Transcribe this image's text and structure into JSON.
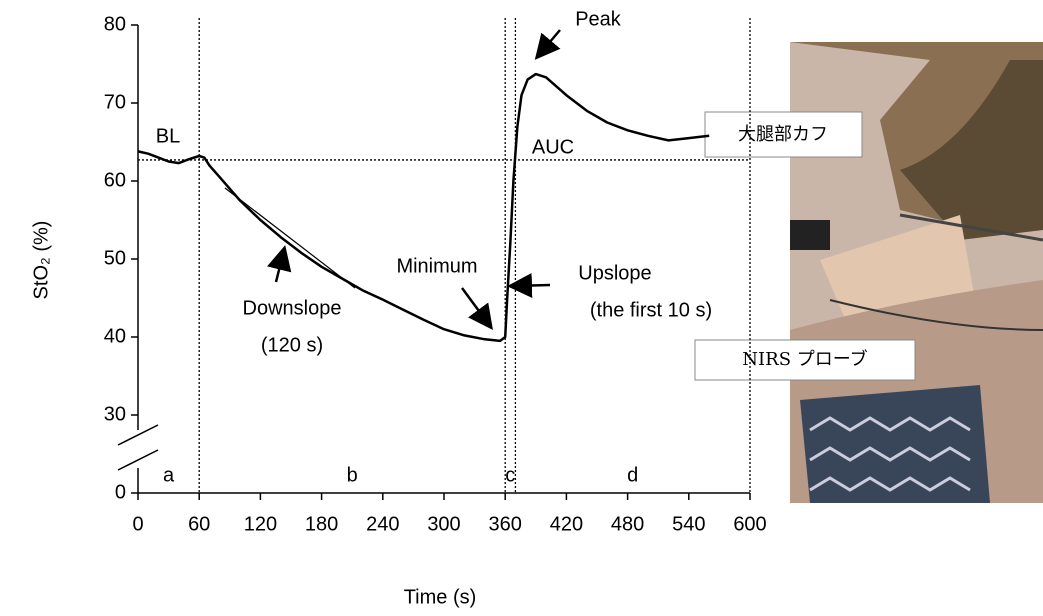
{
  "chart_data": {
    "type": "line",
    "x_label": "Time (s)",
    "y_label": "StO₂ (%)",
    "x": [
      0,
      10,
      20,
      30,
      40,
      50,
      60,
      65,
      70,
      80,
      90,
      100,
      120,
      140,
      160,
      180,
      200,
      220,
      240,
      260,
      280,
      300,
      320,
      340,
      355,
      360,
      362,
      365,
      368,
      372,
      376,
      382,
      390,
      400,
      420,
      440,
      460,
      480,
      500,
      520,
      540,
      560
    ],
    "values": [
      63.8,
      63.5,
      63,
      62.5,
      62.3,
      62.8,
      63.2,
      63,
      62,
      60.5,
      59,
      57.5,
      55,
      52.8,
      50.8,
      49,
      47.5,
      46,
      44.8,
      43.5,
      42.2,
      41,
      40.2,
      39.7,
      39.5,
      40,
      45,
      52,
      60,
      67,
      71,
      73,
      73.7,
      73.3,
      71,
      69,
      67.5,
      66.5,
      65.8,
      65.2,
      65.5,
      65.8
    ],
    "color": "#000000",
    "xlim": [
      0,
      600
    ],
    "xticks": [
      0,
      60,
      120,
      180,
      240,
      300,
      360,
      420,
      480,
      540,
      600
    ],
    "ylim": [
      0,
      80
    ],
    "yticks": [
      0,
      30,
      40,
      50,
      60,
      70,
      80
    ],
    "axis_break": [
      0,
      30
    ],
    "baseline": 62.7,
    "phase_boundaries": [
      60,
      360,
      370,
      600
    ],
    "phase_labels": [
      "a",
      "b",
      "c",
      "d"
    ],
    "annotations": [
      "BL",
      "Peak",
      "AUC",
      "Minimum",
      "Upslope",
      "(the first 10 s)",
      "Downslope",
      "(120 s)"
    ]
  },
  "photo": {
    "labels": [
      "大腿部カフ",
      "NIRS プローブ"
    ]
  }
}
